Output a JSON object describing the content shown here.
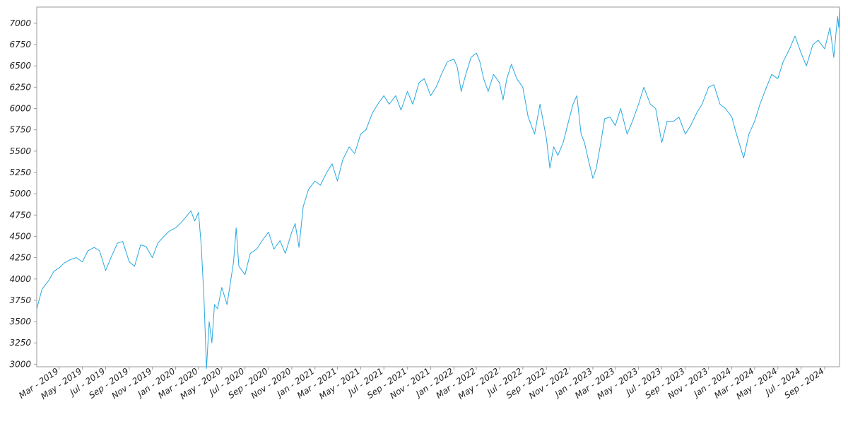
{
  "chart_data": {
    "type": "line",
    "title": "",
    "xlabel": "",
    "ylabel": "",
    "ylim": [
      2970,
      7190
    ],
    "xlim": [
      "2019-01-01",
      "2024-10-10"
    ],
    "y_ticks": [
      3000,
      3250,
      3500,
      3750,
      4000,
      4250,
      4500,
      4750,
      5000,
      5250,
      5500,
      5750,
      6000,
      6250,
      6500,
      6750,
      7000
    ],
    "x_ticks": [
      {
        "date": "2019-03-01",
        "label": "Mar - 2019"
      },
      {
        "date": "2019-05-01",
        "label": "May - 2019"
      },
      {
        "date": "2019-07-01",
        "label": "Jul - 2019"
      },
      {
        "date": "2019-09-01",
        "label": "Sep - 2019"
      },
      {
        "date": "2019-11-01",
        "label": "Nov - 2019"
      },
      {
        "date": "2020-01-01",
        "label": "Jan - 2020"
      },
      {
        "date": "2020-03-01",
        "label": "Mar - 2020"
      },
      {
        "date": "2020-05-01",
        "label": "May - 2020"
      },
      {
        "date": "2020-07-01",
        "label": "Jul - 2020"
      },
      {
        "date": "2020-09-01",
        "label": "Sep - 2020"
      },
      {
        "date": "2020-11-01",
        "label": "Nov - 2020"
      },
      {
        "date": "2021-01-01",
        "label": "Jan - 2021"
      },
      {
        "date": "2021-03-01",
        "label": "Mar - 2021"
      },
      {
        "date": "2021-05-01",
        "label": "May - 2021"
      },
      {
        "date": "2021-07-01",
        "label": "Jul - 2021"
      },
      {
        "date": "2021-09-01",
        "label": "Sep - 2021"
      },
      {
        "date": "2021-11-01",
        "label": "Nov - 2021"
      },
      {
        "date": "2022-01-01",
        "label": "Jan - 2022"
      },
      {
        "date": "2022-03-01",
        "label": "Mar - 2022"
      },
      {
        "date": "2022-05-01",
        "label": "May - 2022"
      },
      {
        "date": "2022-07-01",
        "label": "Jul - 2022"
      },
      {
        "date": "2022-09-01",
        "label": "Sep - 2022"
      },
      {
        "date": "2022-11-01",
        "label": "Nov - 2022"
      },
      {
        "date": "2023-01-01",
        "label": "Jan - 2023"
      },
      {
        "date": "2023-03-01",
        "label": "Mar - 2023"
      },
      {
        "date": "2023-05-01",
        "label": "May - 2023"
      },
      {
        "date": "2023-07-01",
        "label": "Jul - 2023"
      },
      {
        "date": "2023-09-01",
        "label": "Sep - 2023"
      },
      {
        "date": "2023-11-01",
        "label": "Nov - 2023"
      },
      {
        "date": "2024-01-01",
        "label": "Jan - 2024"
      },
      {
        "date": "2024-03-01",
        "label": "Mar - 2024"
      },
      {
        "date": "2024-05-01",
        "label": "May - 2024"
      },
      {
        "date": "2024-07-01",
        "label": "Jul - 2024"
      },
      {
        "date": "2024-09-01",
        "label": "Sep - 2024"
      }
    ],
    "grid": false,
    "legend": "none",
    "series": [
      {
        "color": "#29a8e0",
        "points": [
          [
            "2019-01-01",
            3650
          ],
          [
            "2019-01-15",
            3880
          ],
          [
            "2019-02-01",
            3980
          ],
          [
            "2019-02-15",
            4090
          ],
          [
            "2019-03-01",
            4130
          ],
          [
            "2019-03-15",
            4190
          ],
          [
            "2019-04-01",
            4230
          ],
          [
            "2019-04-15",
            4250
          ],
          [
            "2019-05-01",
            4200
          ],
          [
            "2019-05-15",
            4330
          ],
          [
            "2019-06-01",
            4370
          ],
          [
            "2019-06-15",
            4330
          ],
          [
            "2019-07-01",
            4100
          ],
          [
            "2019-07-15",
            4250
          ],
          [
            "2019-08-01",
            4420
          ],
          [
            "2019-08-15",
            4440
          ],
          [
            "2019-09-01",
            4200
          ],
          [
            "2019-09-15",
            4150
          ],
          [
            "2019-10-01",
            4400
          ],
          [
            "2019-10-15",
            4380
          ],
          [
            "2019-11-01",
            4250
          ],
          [
            "2019-11-15",
            4420
          ],
          [
            "2019-12-01",
            4500
          ],
          [
            "2019-12-15",
            4560
          ],
          [
            "2020-01-01",
            4600
          ],
          [
            "2020-01-15",
            4660
          ],
          [
            "2020-02-01",
            4750
          ],
          [
            "2020-02-10",
            4800
          ],
          [
            "2020-02-20",
            4680
          ],
          [
            "2020-03-01",
            4780
          ],
          [
            "2020-03-08",
            4400
          ],
          [
            "2020-03-15",
            3800
          ],
          [
            "2020-03-22",
            2950
          ],
          [
            "2020-03-29",
            3500
          ],
          [
            "2020-04-05",
            3250
          ],
          [
            "2020-04-12",
            3700
          ],
          [
            "2020-04-20",
            3650
          ],
          [
            "2020-05-01",
            3900
          ],
          [
            "2020-05-15",
            3700
          ],
          [
            "2020-06-01",
            4200
          ],
          [
            "2020-06-08",
            4600
          ],
          [
            "2020-06-15",
            4150
          ],
          [
            "2020-07-01",
            4050
          ],
          [
            "2020-07-15",
            4300
          ],
          [
            "2020-08-01",
            4350
          ],
          [
            "2020-08-15",
            4450
          ],
          [
            "2020-09-01",
            4550
          ],
          [
            "2020-09-15",
            4350
          ],
          [
            "2020-10-01",
            4450
          ],
          [
            "2020-10-15",
            4300
          ],
          [
            "2020-11-01",
            4550
          ],
          [
            "2020-11-10",
            4650
          ],
          [
            "2020-11-20",
            4370
          ],
          [
            "2020-12-01",
            4850
          ],
          [
            "2020-12-15",
            5050
          ],
          [
            "2021-01-01",
            5150
          ],
          [
            "2021-01-15",
            5100
          ],
          [
            "2021-02-01",
            5250
          ],
          [
            "2021-02-15",
            5350
          ],
          [
            "2021-03-01",
            5150
          ],
          [
            "2021-03-15",
            5400
          ],
          [
            "2021-04-01",
            5550
          ],
          [
            "2021-04-15",
            5470
          ],
          [
            "2021-05-01",
            5700
          ],
          [
            "2021-05-15",
            5750
          ],
          [
            "2021-06-01",
            5950
          ],
          [
            "2021-06-15",
            6050
          ],
          [
            "2021-07-01",
            6150
          ],
          [
            "2021-07-15",
            6050
          ],
          [
            "2021-08-01",
            6150
          ],
          [
            "2021-08-15",
            5980
          ],
          [
            "2021-09-01",
            6200
          ],
          [
            "2021-09-15",
            6050
          ],
          [
            "2021-10-01",
            6300
          ],
          [
            "2021-10-15",
            6350
          ],
          [
            "2021-11-01",
            6150
          ],
          [
            "2021-11-15",
            6250
          ],
          [
            "2021-12-01",
            6420
          ],
          [
            "2021-12-15",
            6550
          ],
          [
            "2022-01-01",
            6580
          ],
          [
            "2022-01-10",
            6480
          ],
          [
            "2022-01-20",
            6200
          ],
          [
            "2022-02-01",
            6400
          ],
          [
            "2022-02-15",
            6600
          ],
          [
            "2022-03-01",
            6650
          ],
          [
            "2022-03-10",
            6550
          ],
          [
            "2022-03-20",
            6350
          ],
          [
            "2022-04-01",
            6200
          ],
          [
            "2022-04-15",
            6400
          ],
          [
            "2022-05-01",
            6300
          ],
          [
            "2022-05-10",
            6100
          ],
          [
            "2022-05-20",
            6350
          ],
          [
            "2022-06-01",
            6520
          ],
          [
            "2022-06-15",
            6350
          ],
          [
            "2022-07-01",
            6250
          ],
          [
            "2022-07-15",
            5900
          ],
          [
            "2022-08-01",
            5700
          ],
          [
            "2022-08-15",
            6050
          ],
          [
            "2022-09-01",
            5650
          ],
          [
            "2022-09-10",
            5300
          ],
          [
            "2022-09-20",
            5550
          ],
          [
            "2022-10-01",
            5450
          ],
          [
            "2022-10-15",
            5600
          ],
          [
            "2022-11-01",
            5900
          ],
          [
            "2022-11-10",
            6050
          ],
          [
            "2022-11-20",
            6150
          ],
          [
            "2022-12-01",
            5700
          ],
          [
            "2022-12-10",
            5600
          ],
          [
            "2022-12-20",
            5400
          ],
          [
            "2023-01-01",
            5180
          ],
          [
            "2023-01-10",
            5300
          ],
          [
            "2023-01-20",
            5550
          ],
          [
            "2023-02-01",
            5880
          ],
          [
            "2023-02-15",
            5900
          ],
          [
            "2023-03-01",
            5800
          ],
          [
            "2023-03-15",
            6000
          ],
          [
            "2023-04-01",
            5700
          ],
          [
            "2023-04-15",
            5850
          ],
          [
            "2023-05-01",
            6050
          ],
          [
            "2023-05-15",
            6250
          ],
          [
            "2023-06-01",
            6050
          ],
          [
            "2023-06-15",
            6000
          ],
          [
            "2023-07-01",
            5600
          ],
          [
            "2023-07-15",
            5850
          ],
          [
            "2023-08-01",
            5850
          ],
          [
            "2023-08-15",
            5900
          ],
          [
            "2023-09-01",
            5700
          ],
          [
            "2023-09-15",
            5800
          ],
          [
            "2023-10-01",
            5950
          ],
          [
            "2023-10-15",
            6050
          ],
          [
            "2023-11-01",
            6250
          ],
          [
            "2023-11-15",
            6280
          ],
          [
            "2023-12-01",
            6050
          ],
          [
            "2023-12-15",
            6000
          ],
          [
            "2024-01-01",
            5900
          ],
          [
            "2024-01-10",
            5750
          ],
          [
            "2024-01-20",
            5600
          ],
          [
            "2024-02-01",
            5420
          ],
          [
            "2024-02-15",
            5700
          ],
          [
            "2024-03-01",
            5850
          ],
          [
            "2024-03-15",
            6050
          ],
          [
            "2024-04-01",
            6250
          ],
          [
            "2024-04-15",
            6400
          ],
          [
            "2024-05-01",
            6350
          ],
          [
            "2024-05-15",
            6550
          ],
          [
            "2024-06-01",
            6700
          ],
          [
            "2024-06-15",
            6850
          ],
          [
            "2024-07-01",
            6650
          ],
          [
            "2024-07-15",
            6500
          ],
          [
            "2024-08-01",
            6750
          ],
          [
            "2024-08-15",
            6800
          ],
          [
            "2024-09-01",
            6700
          ],
          [
            "2024-09-15",
            6950
          ],
          [
            "2024-09-25",
            6600
          ],
          [
            "2024-10-01",
            6900
          ],
          [
            "2024-10-05",
            7080
          ],
          [
            "2024-10-08",
            6950
          ],
          [
            "2024-10-10",
            7180
          ]
        ]
      }
    ]
  }
}
